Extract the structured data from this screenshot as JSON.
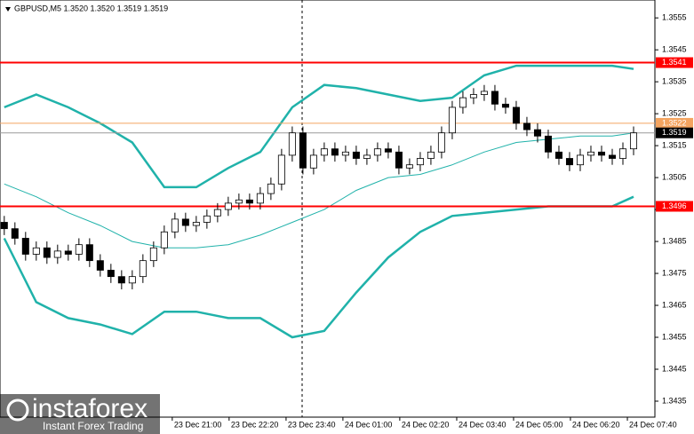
{
  "chart_data": {
    "type": "candlestick",
    "title": "GBPUSD,M5  1.3520 1.3520 1.3519 1.3519",
    "open": [
      1.3491,
      1.3489,
      1.3486,
      1.3481,
      1.3483,
      1.348,
      1.3482,
      1.3481,
      1.3484,
      1.3479,
      1.3476,
      1.3474,
      1.3472,
      1.3474,
      1.3479,
      1.3483,
      1.3488,
      1.3492,
      1.349,
      1.3491,
      1.3493,
      1.3495,
      1.3497,
      1.3498,
      1.3497,
      1.35,
      1.3503,
      1.3512,
      1.3519,
      1.3508,
      1.3512,
      1.3514,
      1.3512,
      1.3513,
      1.3511,
      1.3512,
      1.3514,
      1.3513,
      1.3508,
      1.3509,
      1.3511,
      1.3513,
      1.3519,
      1.3527,
      1.353,
      1.3531,
      1.3532,
      1.3528,
      1.3527,
      1.3522,
      1.352,
      1.3518,
      1.3513,
      1.3511,
      1.3509,
      1.3512,
      1.3513,
      1.3512,
      1.3511,
      1.3514
    ],
    "high": [
      1.3493,
      1.3491,
      1.3488,
      1.3485,
      1.3485,
      1.3484,
      1.3484,
      1.3486,
      1.3486,
      1.3481,
      1.3478,
      1.3476,
      1.3476,
      1.3481,
      1.3485,
      1.349,
      1.3494,
      1.3494,
      1.3493,
      1.3495,
      1.3497,
      1.3499,
      1.35,
      1.35,
      1.3502,
      1.3505,
      1.3514,
      1.3521,
      1.3521,
      1.3514,
      1.3516,
      1.3516,
      1.3515,
      1.3515,
      1.3514,
      1.3516,
      1.3516,
      1.3515,
      1.3511,
      1.3513,
      1.3515,
      1.3521,
      1.3529,
      1.3532,
      1.3533,
      1.3534,
      1.3534,
      1.353,
      1.3529,
      1.3524,
      1.3522,
      1.352,
      1.3515,
      1.3513,
      1.3514,
      1.3515,
      1.3515,
      1.3514,
      1.3516,
      1.3521
    ],
    "low": [
      1.3487,
      1.3484,
      1.3479,
      1.3479,
      1.3478,
      1.3478,
      1.3479,
      1.3479,
      1.3477,
      1.3474,
      1.3472,
      1.347,
      1.347,
      1.3472,
      1.3477,
      1.3481,
      1.3486,
      1.3488,
      1.3488,
      1.3489,
      1.3491,
      1.3493,
      1.3495,
      1.3495,
      1.3495,
      1.3498,
      1.3501,
      1.351,
      1.3506,
      1.3506,
      1.351,
      1.351,
      1.351,
      1.3509,
      1.3509,
      1.351,
      1.3511,
      1.3506,
      1.3506,
      1.3507,
      1.3509,
      1.3511,
      1.3517,
      1.3525,
      1.3528,
      1.3529,
      1.3526,
      1.3525,
      1.352,
      1.3518,
      1.3516,
      1.3511,
      1.3509,
      1.3507,
      1.3507,
      1.351,
      1.351,
      1.3509,
      1.3509,
      1.3512
    ],
    "close": [
      1.3489,
      1.3486,
      1.3481,
      1.3483,
      1.348,
      1.3482,
      1.3481,
      1.3484,
      1.3479,
      1.3476,
      1.3474,
      1.3472,
      1.3474,
      1.3479,
      1.3483,
      1.3488,
      1.3492,
      1.349,
      1.3491,
      1.3493,
      1.3495,
      1.3497,
      1.3498,
      1.3497,
      1.35,
      1.3503,
      1.3512,
      1.3519,
      1.3508,
      1.3512,
      1.3514,
      1.3512,
      1.3513,
      1.3511,
      1.3512,
      1.3514,
      1.3513,
      1.3508,
      1.3509,
      1.3511,
      1.3513,
      1.3519,
      1.3527,
      1.353,
      1.3531,
      1.3532,
      1.3528,
      1.3527,
      1.3522,
      1.352,
      1.3518,
      1.3513,
      1.3511,
      1.3509,
      1.3512,
      1.3513,
      1.3512,
      1.3511,
      1.3514,
      1.3519
    ],
    "candle_color": "#000000",
    "bands_x": [
      0,
      3,
      6,
      9,
      12,
      15,
      18,
      21,
      24,
      27,
      30,
      33,
      36,
      39,
      42,
      45,
      48,
      51,
      54,
      57,
      59
    ],
    "series": [
      {
        "color": "#20b2aa",
        "values": [
          1.3527,
          1.3531,
          1.3527,
          1.3522,
          1.3516,
          1.3502,
          1.3502,
          1.3508,
          1.3513,
          1.3527,
          1.3534,
          1.3533,
          1.3531,
          1.3529,
          1.353,
          1.3537,
          1.354,
          1.354,
          1.354,
          1.354,
          1.3539
        ]
      },
      {
        "color": "#20b2aa",
        "values": [
          1.3503,
          1.3499,
          1.3494,
          1.349,
          1.3485,
          1.3483,
          1.3483,
          1.3484,
          1.3487,
          1.3491,
          1.3495,
          1.3501,
          1.3505,
          1.3506,
          1.3509,
          1.3513,
          1.3516,
          1.3517,
          1.3518,
          1.3518,
          1.3519
        ]
      },
      {
        "color": "#20b2aa",
        "values": [
          1.3486,
          1.3466,
          1.3461,
          1.3459,
          1.3456,
          1.3463,
          1.3463,
          1.3461,
          1.3461,
          1.3455,
          1.3457,
          1.3469,
          1.348,
          1.3488,
          1.3493,
          1.3494,
          1.3495,
          1.3496,
          1.3496,
          1.3496,
          1.3499
        ]
      }
    ],
    "levels": [
      {
        "value": 1.3541,
        "label": "1.3541",
        "color": "#ff0000"
      },
      {
        "value": 1.3522,
        "label": "1.3522",
        "color": "#f4a460"
      },
      {
        "value": 1.3519,
        "label": "1.3519",
        "color": "#000000"
      },
      {
        "value": 1.3496,
        "label": "1.3496",
        "color": "#ff0000"
      }
    ],
    "xlim": [
      -0.4,
      61
    ],
    "xticks": [
      {
        "value": 15.75,
        "label": "23 Dec 21:00"
      },
      {
        "value": 21.08,
        "label": "23 Dec 22:20"
      },
      {
        "value": 26.42,
        "label": "23 Dec 23:40"
      },
      {
        "value": 31.75,
        "label": "24 Dec 01:00"
      },
      {
        "value": 37.08,
        "label": "24 Dec 02:20"
      },
      {
        "value": 42.42,
        "label": "24 Dec 03:40"
      },
      {
        "value": 47.75,
        "label": "24 Dec 05:00"
      },
      {
        "value": 53.08,
        "label": "24 Dec 06:20"
      },
      {
        "value": 58.42,
        "label": "24 Dec 07:40"
      }
    ],
    "ylim": [
      1.343,
      1.35606
    ],
    "yticks": [
      1.3435,
      1.3445,
      1.3455,
      1.3465,
      1.3475,
      1.3485,
      1.3495,
      1.3505,
      1.3515,
      1.3525,
      1.3535,
      1.3545,
      1.3555
    ],
    "watermark": {
      "brand": "instaforex",
      "tagline": "Instant Forex Trading"
    }
  }
}
